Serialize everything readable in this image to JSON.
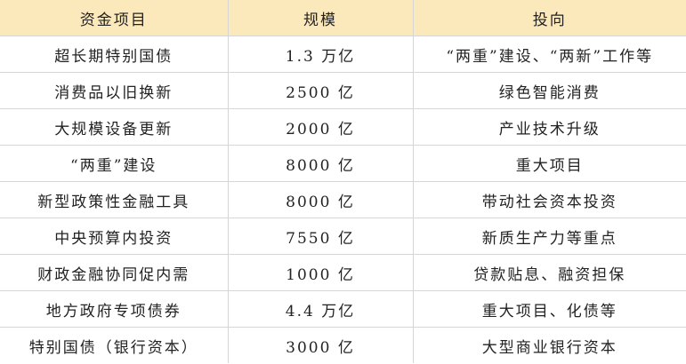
{
  "table": {
    "header_color": "#fbe8bb",
    "columns": [
      "资金项目",
      "规模",
      "投向"
    ],
    "rows": [
      [
        "超长期特别国债",
        "1.3 万亿",
        "“两重”建设、“两新”工作等"
      ],
      [
        "消费品以旧换新",
        "2500 亿",
        "绿色智能消费"
      ],
      [
        "大规模设备更新",
        "2000 亿",
        "产业技术升级"
      ],
      [
        "“两重”建设",
        "8000 亿",
        "重大项目"
      ],
      [
        "新型政策性金融工具",
        "8000 亿",
        "带动社会资本投资"
      ],
      [
        "中央预算内投资",
        "7550 亿",
        "新质生产力等重点"
      ],
      [
        "财政金融协同促内需",
        "1000 亿",
        "贷款贴息、融资担保"
      ],
      [
        "地方政府专项债券",
        "4.4 万亿",
        "重大项目、化债等"
      ],
      [
        "特别国债（银行资本）",
        "3000 亿",
        "大型商业银行资本"
      ]
    ]
  }
}
